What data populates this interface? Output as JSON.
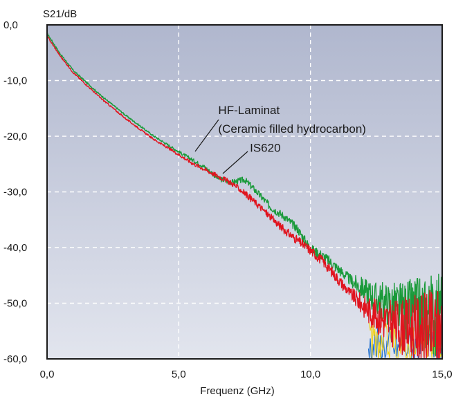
{
  "chart_data": {
    "type": "line",
    "title": "",
    "xlabel": "Frequenz (GHz)",
    "ylabel": "S21/dB",
    "xlim": [
      0,
      15
    ],
    "ylim": [
      -60,
      0
    ],
    "grid": true,
    "x_ticks": [
      0,
      5,
      10,
      15
    ],
    "x_tick_labels": [
      "0,0",
      "5,0",
      "10,0",
      "15,0"
    ],
    "y_ticks": [
      0,
      -10,
      -20,
      -30,
      -40,
      -50,
      -60
    ],
    "y_tick_labels": [
      "0,0",
      "-10,0",
      "-20,0",
      "-30,0",
      "-40,0",
      "-50,0",
      "-60,0"
    ],
    "colors": {
      "hf_laminat": "#1a9a3a",
      "is620": "#e0141e",
      "noise_blue": "#1e6fd0",
      "noise_yellow": "#f2d21a",
      "plot_bg_top": "#b0b7ce",
      "plot_bg_bottom": "#e2e5ee"
    },
    "series": [
      {
        "name": "HF-Laminat (Ceramic filled hydrocarbon)",
        "color": "#1a9a3a",
        "x": [
          0,
          0.5,
          1,
          2,
          3,
          4,
          5,
          5.5,
          6,
          6.5,
          7,
          7.5,
          8,
          8.5,
          9,
          9.5,
          10,
          10.5,
          11,
          11.5,
          12,
          12.5,
          13,
          13.5,
          14,
          14.5,
          15
        ],
        "y": [
          -1.5,
          -5.2,
          -8.2,
          -12.5,
          -16.3,
          -19.8,
          -22.8,
          -24.2,
          -25.6,
          -27.6,
          -28.3,
          -27.8,
          -30.2,
          -32.8,
          -34.4,
          -36.6,
          -40.2,
          -41.6,
          -43.6,
          -45.8,
          -47.4,
          -49.2,
          -50.2,
          -51.2,
          -51.5,
          -51.8,
          -52.0
        ]
      },
      {
        "name": "IS620",
        "color": "#e0141e",
        "x": [
          0,
          0.5,
          1,
          2,
          3,
          4,
          5,
          5.5,
          6,
          6.5,
          7,
          7.5,
          8,
          8.5,
          9,
          9.5,
          10,
          10.5,
          11,
          11.5,
          12,
          12.5,
          13,
          13.5,
          14,
          14.5,
          15
        ],
        "y": [
          -2.0,
          -5.6,
          -8.6,
          -13.0,
          -16.9,
          -20.4,
          -23.3,
          -24.8,
          -26.0,
          -27.2,
          -28.4,
          -30.2,
          -32.3,
          -34.6,
          -36.8,
          -38.7,
          -40.5,
          -42.6,
          -45.4,
          -48.2,
          -50.4,
          -52.3,
          -53.4,
          -54.2,
          -54.5,
          -54.8,
          -55.0
        ]
      }
    ],
    "annotations": [
      {
        "text": "HF-Laminat",
        "x": 6.5,
        "y": -16.0
      },
      {
        "text": "(Ceramic filled hydrocarbon)",
        "x": 6.5,
        "y": -19.4
      },
      {
        "text": "IS620",
        "x": 7.7,
        "y": -22.8
      }
    ]
  }
}
